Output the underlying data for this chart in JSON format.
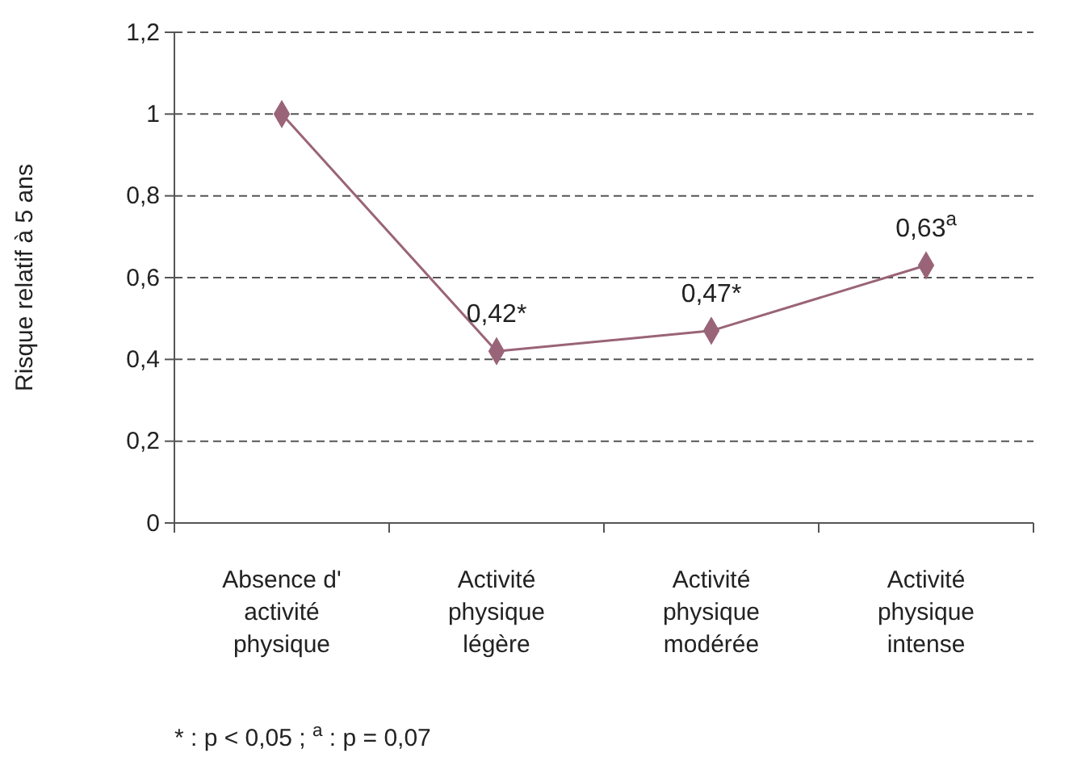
{
  "chart_data": {
    "type": "line",
    "ylabel": "Risque relatif à 5 ans",
    "categories": [
      "Absence d' activité physique",
      "Activité physique légère",
      "Activité physique modérée",
      "Activité physique intense"
    ],
    "series": [
      {
        "color": "#9a6478",
        "values": [
          1,
          0.42,
          0.47,
          0.63
        ],
        "value_labels": [
          null,
          "0,42*",
          "0,47*",
          "0,63$^{a}$"
        ]
      }
    ],
    "ylim": [
      0,
      1.2
    ],
    "yticks": [
      {
        "value": 0,
        "label": "0"
      },
      {
        "value": 0.2,
        "label": "0,2"
      },
      {
        "value": 0.4,
        "label": "0,4"
      },
      {
        "value": 0.6,
        "label": "0,6"
      },
      {
        "value": 0.8,
        "label": "0,8"
      },
      {
        "value": 1,
        "label": "1"
      },
      {
        "value": 1.2,
        "label": "1,2"
      }
    ],
    "grid": "y",
    "marker": "diamond",
    "line_style": "solid",
    "annotations": [
      "* : p < 0,05 ; $^{a}$ : p = 0,07"
    ]
  }
}
